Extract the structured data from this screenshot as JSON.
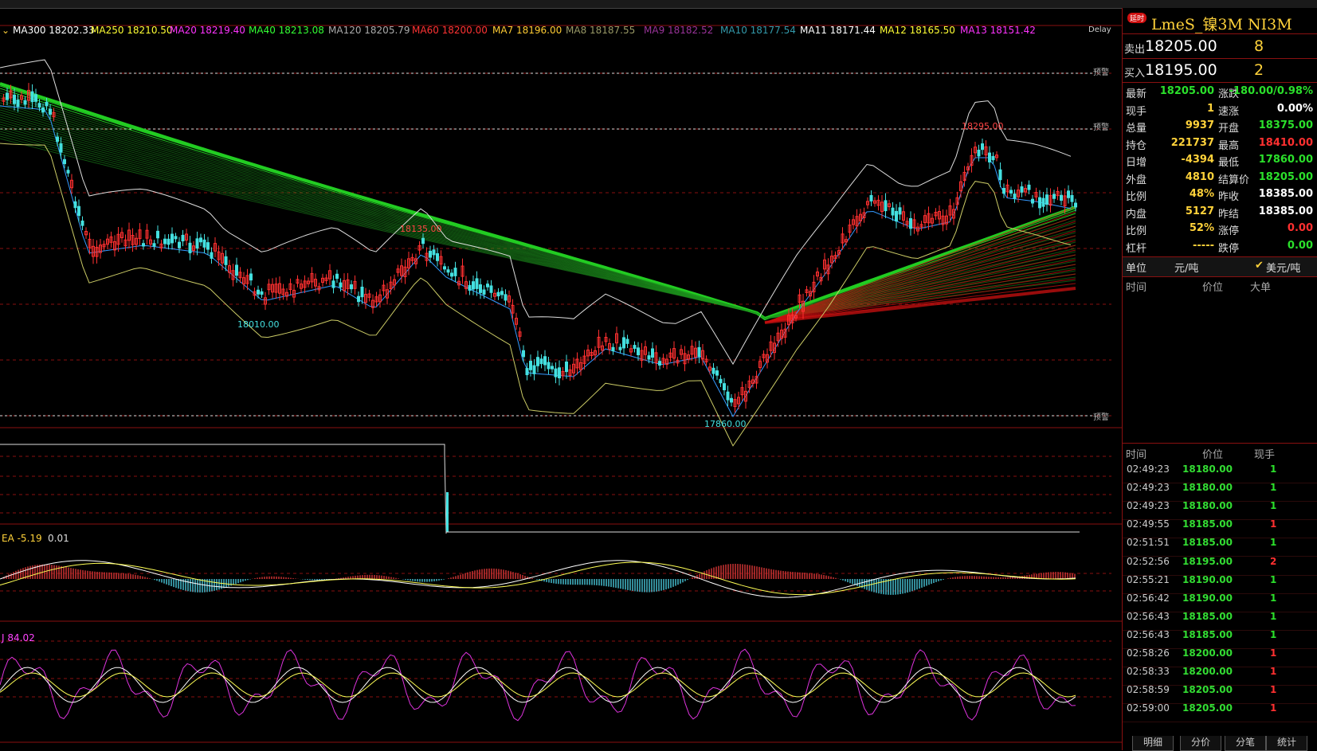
{
  "colors": {
    "up": "#ff3030",
    "down": "#44e0e0",
    "accent": "#ffd23a",
    "green": "#2be02b",
    "grid": "#8a1010"
  },
  "ma_legend": [
    {
      "text": "MA300 18202.33",
      "color": "#ffffff"
    },
    {
      "text": "MA250 18210.50",
      "color": "#ffff33"
    },
    {
      "text": "MA20 18219.40",
      "color": "#ff33ff"
    },
    {
      "text": "MA40 18213.08",
      "color": "#33ff33"
    },
    {
      "text": "MA120 18205.79",
      "color": "#aaaaaa"
    },
    {
      "text": "MA60 18200.00",
      "color": "#ff3333"
    },
    {
      "text": "MA7 18196.00",
      "color": "#ffcc33"
    },
    {
      "text": "MA8 18187.55",
      "color": "#999966"
    },
    {
      "text": "MA9 18182.52",
      "color": "#993399"
    },
    {
      "text": "MA10 18177.54",
      "color": "#3399aa"
    },
    {
      "text": "MA11 18171.44",
      "color": "#ffffff"
    },
    {
      "text": "MA12 18165.50",
      "color": "#ffff33"
    },
    {
      "text": "MA13 18151.42",
      "color": "#ff33ff"
    }
  ],
  "delay_label": "Delay",
  "warn_label": "预警",
  "price_marks": {
    "high1": "18135.00",
    "low1": "18010.00",
    "high2": "18295.00",
    "low2": "17860.00"
  },
  "macd_label": "EA -5.19",
  "macd_value": "0.01",
  "kdj_label": "J 84.02",
  "panel": {
    "badge": "延时",
    "title": "LmeS_镍3M NI3M",
    "sell_label": "卖出",
    "sell_price": "18205.00",
    "sell_vol": "8",
    "buy_label": "买入",
    "buy_price": "18195.00",
    "buy_vol": "2",
    "stats": [
      {
        "l": "最新",
        "v": "18205.00",
        "vc": "#2be02b",
        "l2": "涨跌",
        "v2": "-180.00/0.98%",
        "v2c": "#2be02b"
      },
      {
        "l": "现手",
        "v": "1",
        "vc": "#ffd23a",
        "l2": "速涨",
        "v2": "0.00%",
        "v2c": "#ffffff"
      },
      {
        "l": "总量",
        "v": "9937",
        "vc": "#ffd23a",
        "l2": "开盘",
        "v2": "18375.00",
        "v2c": "#2be02b"
      },
      {
        "l": "持仓",
        "v": "221737",
        "vc": "#ffd23a",
        "l2": "最高",
        "v2": "18410.00",
        "v2c": "#ff3030"
      },
      {
        "l": "日增",
        "v": "-4394",
        "vc": "#ffd23a",
        "l2": "最低",
        "v2": "17860.00",
        "v2c": "#2be02b"
      },
      {
        "l": "外盘",
        "v": "4810",
        "vc": "#ffd23a",
        "l2": "结算价",
        "v2": "18205.00",
        "v2c": "#2be02b"
      },
      {
        "l": "比例",
        "v": "48%",
        "vc": "#ffd23a",
        "l2": "昨收",
        "v2": "18385.00",
        "v2c": "#ffffff"
      },
      {
        "l": "内盘",
        "v": "5127",
        "vc": "#ffd23a",
        "l2": "昨结",
        "v2": "18385.00",
        "v2c": "#ffffff"
      },
      {
        "l": "比例",
        "v": "52%",
        "vc": "#ffd23a",
        "l2": "涨停",
        "v2": "0.00",
        "v2c": "#ff3030"
      },
      {
        "l": "杠杆",
        "v": "-----",
        "vc": "#ffd23a",
        "l2": "跌停",
        "v2": "0.00",
        "v2c": "#2be02b"
      }
    ],
    "unit_label": "单位",
    "unit_value": "元/吨",
    "unit_usd": "美元/吨",
    "big_header": {
      "time": "时间",
      "price": "价位",
      "big": "大单"
    },
    "tick_header": {
      "time": "时间",
      "price": "价位",
      "vol": "现手"
    },
    "ticks": [
      {
        "t": "02:49:23",
        "p": "18180.00",
        "v": "1",
        "c": "#2be02b"
      },
      {
        "t": "02:49:23",
        "p": "18180.00",
        "v": "1",
        "c": "#2be02b"
      },
      {
        "t": "02:49:23",
        "p": "18180.00",
        "v": "1",
        "c": "#2be02b"
      },
      {
        "t": "02:49:55",
        "p": "18185.00",
        "v": "1",
        "c": "#ff3030"
      },
      {
        "t": "02:51:51",
        "p": "18185.00",
        "v": "1",
        "c": "#2be02b"
      },
      {
        "t": "02:52:56",
        "p": "18195.00",
        "v": "2",
        "c": "#ff3030"
      },
      {
        "t": "02:55:21",
        "p": "18190.00",
        "v": "1",
        "c": "#2be02b"
      },
      {
        "t": "02:56:42",
        "p": "18190.00",
        "v": "1",
        "c": "#2be02b"
      },
      {
        "t": "02:56:43",
        "p": "18185.00",
        "v": "1",
        "c": "#2be02b"
      },
      {
        "t": "02:56:43",
        "p": "18185.00",
        "v": "1",
        "c": "#2be02b"
      },
      {
        "t": "02:58:26",
        "p": "18200.00",
        "v": "1",
        "c": "#ff3030"
      },
      {
        "t": "02:58:33",
        "p": "18200.00",
        "v": "1",
        "c": "#ff3030"
      },
      {
        "t": "02:58:59",
        "p": "18205.00",
        "v": "1",
        "c": "#ff3030"
      },
      {
        "t": "02:59:00",
        "p": "18205.00",
        "v": "1",
        "c": "#ff3030"
      }
    ],
    "tabs": [
      "明细",
      "分价",
      "分笔",
      "统计"
    ]
  }
}
